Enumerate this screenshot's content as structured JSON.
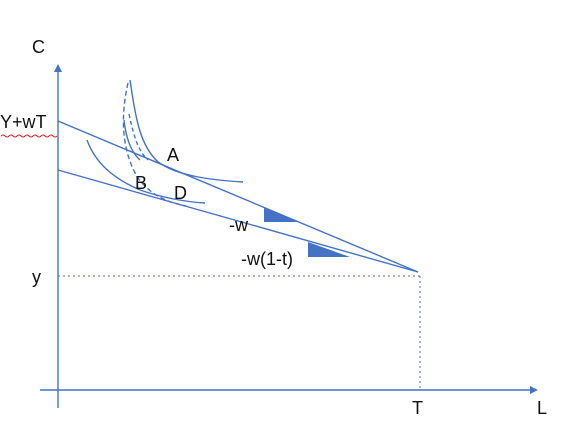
{
  "labels": {
    "y_axis": "C",
    "x_axis": "L",
    "intercept_high": "Y+wT",
    "intercept_low": "y",
    "x_endowment": "T",
    "point_a": "A",
    "point_b": "B",
    "point_d": "D",
    "slope_steep": "-w",
    "slope_flat": "-w(1-t)"
  },
  "colors": {
    "axis": "#4472c4",
    "line": "#4472c4",
    "curve": "#4472c4",
    "triangle": "#4472c4",
    "text": "#111111",
    "spellcheck_underline": "#e02020"
  }
}
